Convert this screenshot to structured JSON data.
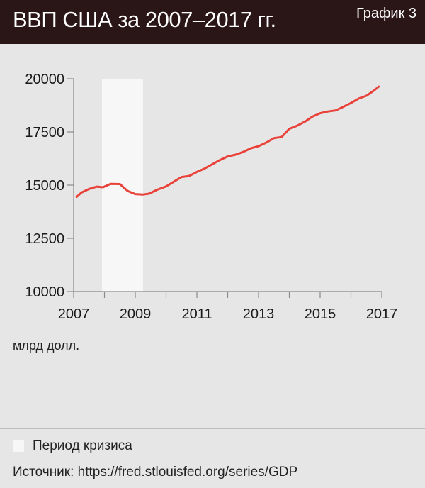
{
  "header": {
    "title": "ВВП США за 2007–2017 гг.",
    "chart_number": "График 3"
  },
  "chart_data": {
    "type": "line",
    "title": "ВВП США за 2007–2017 гг.",
    "ylabel": "млрд долл.",
    "xlabel": "",
    "xlim": [
      2007,
      2017
    ],
    "ylim": [
      10000,
      20000
    ],
    "x_ticks": [
      "2007",
      "2009",
      "2011",
      "2013",
      "2015",
      "2017"
    ],
    "y_ticks": [
      "20000",
      "17500",
      "15000",
      "12500",
      "10000"
    ],
    "grid": false,
    "series_color": "#e8423a",
    "shaded_region": {
      "label": "Период кризиса",
      "from": 2007.92,
      "to": 2009.25,
      "color": "#f7f7f7"
    },
    "series": [
      {
        "x": [
          2007.1,
          2007.25,
          2007.5,
          2007.75,
          2007.95,
          2008.2,
          2008.5,
          2008.75,
          2009.0,
          2009.25,
          2009.45,
          2009.7,
          2010.0,
          2010.25,
          2010.5,
          2010.75,
          2011.0,
          2011.25,
          2011.5,
          2011.75,
          2012.0,
          2012.25,
          2012.5,
          2012.75,
          2013.0,
          2013.25,
          2013.5,
          2013.75,
          2014.0,
          2014.25,
          2014.5,
          2014.75,
          2015.0,
          2015.25,
          2015.5,
          2015.75,
          2016.0,
          2016.25,
          2016.5,
          2016.75,
          2016.9
        ],
        "values": [
          14450,
          14650,
          14820,
          14930,
          14900,
          15060,
          15050,
          14730,
          14580,
          14560,
          14600,
          14780,
          14940,
          15160,
          15380,
          15430,
          15620,
          15780,
          15980,
          16180,
          16350,
          16430,
          16560,
          16730,
          16830,
          17000,
          17210,
          17260,
          17650,
          17790,
          17980,
          18220,
          18380,
          18460,
          18510,
          18680,
          18860,
          19070,
          19200,
          19450,
          19630
        ]
      }
    ]
  },
  "legend": {
    "label": "Период кризиса"
  },
  "source": "Источник: https://fred.stlouisfed.org/series/GDP"
}
